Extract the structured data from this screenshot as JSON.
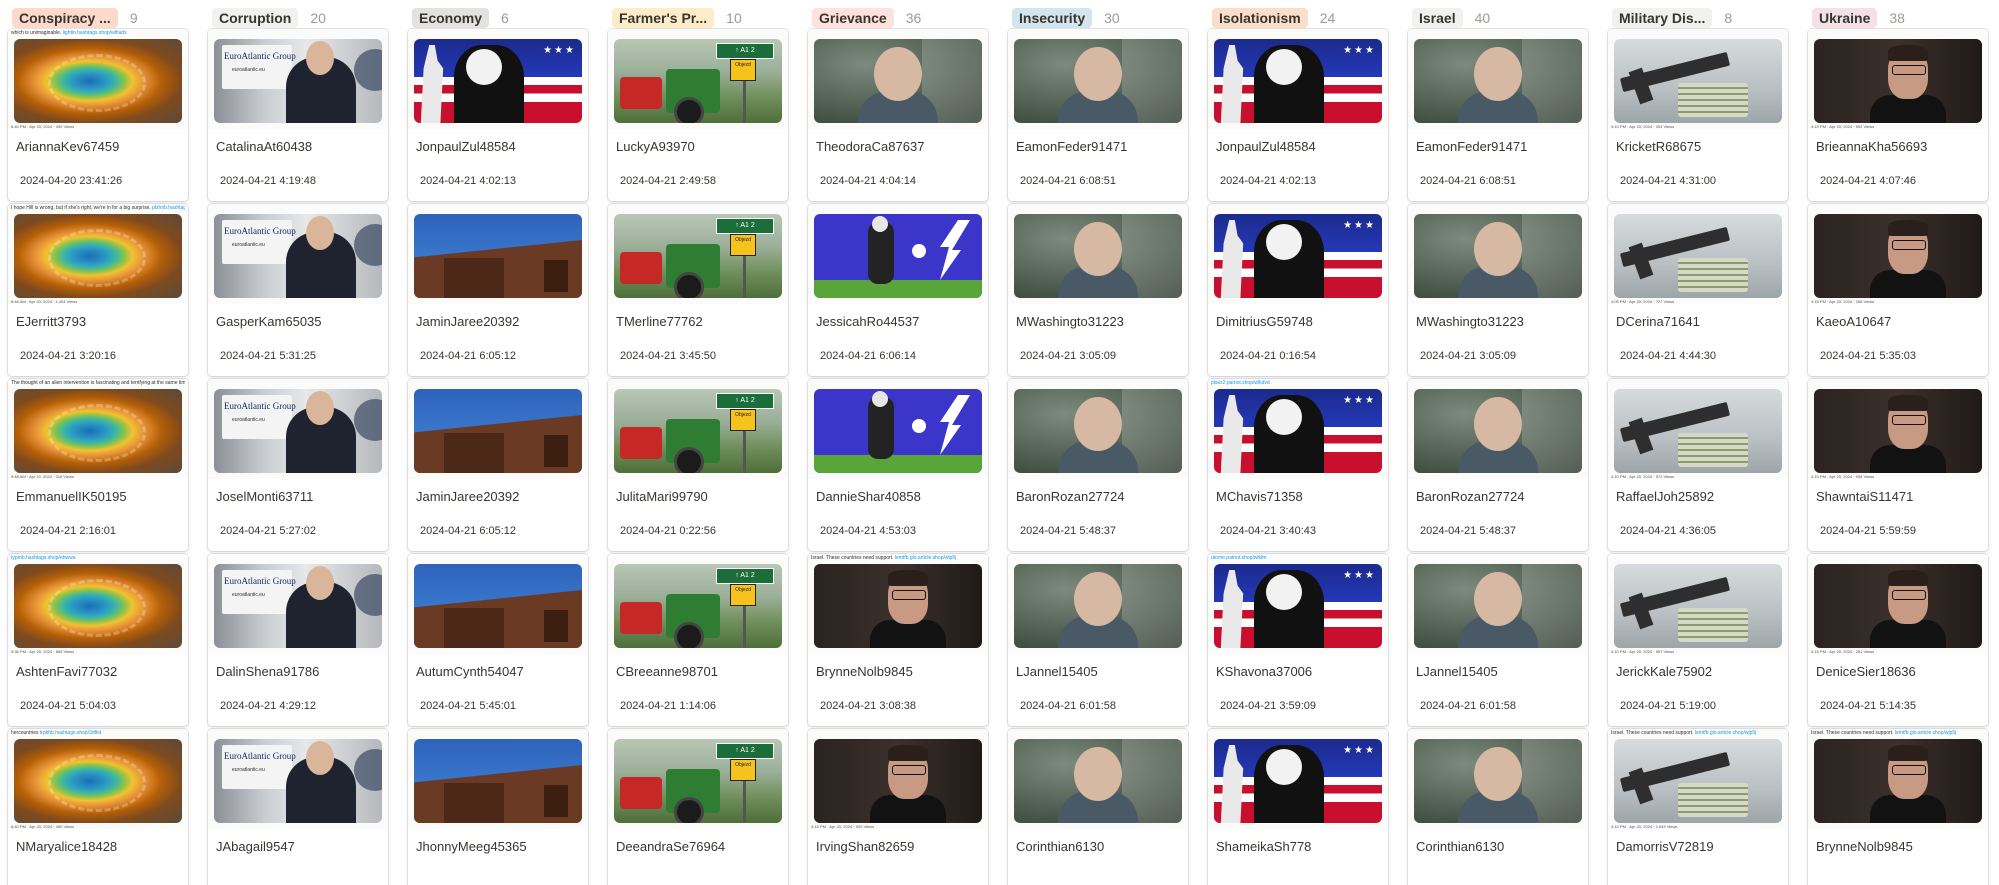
{
  "columns": [
    {
      "label": "Conspiracy ...",
      "count": "9",
      "color": "#fdd9cc",
      "cards": [
        {
          "name": "AriannaKev67459",
          "date": "2024-04-20 23:41:26",
          "image": "img-spring",
          "top": "which is unimaginable.",
          "link": "lightin.hashtags.shop/wlhadx",
          "bottom": "6:40 PM · Apr 20, 2024 · 490 Views"
        },
        {
          "name": "EJerritt3793",
          "date": "2024-04-21 3:20:16",
          "image": "img-spring",
          "top": "I hope Hill is wrong, but if she's right, we're in for a big surprise.",
          "link": "plshnb.hashtags.shop/wlhedd",
          "bottom": "8:46 AM · Apr 20, 2024 · 1,494 Views"
        },
        {
          "name": "EmmanuelIK50195",
          "date": "2024-04-21 2:16:01",
          "image": "img-spring",
          "top": "The thought of an alien intervention is fascinating and terrifying at the same time.",
          "link": "forcy.hashtags.shop/ebf90",
          "bottom": "9:48 AM · Apr 20, 2024 · 316 Views"
        },
        {
          "name": "AshtenFavi77032",
          "date": "2024-04-21 5:04:03",
          "image": "img-spring",
          "top": "",
          "link": "typmb.hashtags.shop/ebwwa",
          "bottom": "5:36 PM · Apr 20, 2024 · 683 Views"
        },
        {
          "name": "NMaryalice18428",
          "date": "",
          "image": "img-spring",
          "top": "hercountries",
          "link": "trpkhb.hashtags.shop/3dfkd",
          "bottom": "6:40 PM · Apr 20, 2024 · 490 Views"
        }
      ]
    },
    {
      "label": "Corruption",
      "count": "20",
      "color": "#f1f1ef",
      "cards": [
        {
          "name": "CatalinaAt60438",
          "date": "2024-04-21 4:19:48",
          "image": "img-office",
          "top": "",
          "link": "",
          "bottom": ""
        },
        {
          "name": "GasperKam65035",
          "date": "2024-04-21 5:31:25",
          "image": "img-office",
          "top": "",
          "link": "",
          "bottom": ""
        },
        {
          "name": "JoselMonti63711",
          "date": "2024-04-21 5:27:02",
          "image": "img-office",
          "top": "",
          "link": "",
          "bottom": ""
        },
        {
          "name": "DalinShena91786",
          "date": "2024-04-21 4:29:12",
          "image": "img-office",
          "top": "",
          "link": "",
          "bottom": ""
        },
        {
          "name": "JAbagail9547",
          "date": "",
          "image": "img-office",
          "top": "",
          "link": "",
          "bottom": ""
        }
      ]
    },
    {
      "label": "Economy",
      "count": "6",
      "color": "#e3e2e0",
      "cards": [
        {
          "name": "JonpaulZul48584",
          "date": "2024-04-21 4:02:13",
          "image": "img-trump",
          "top": "",
          "link": "",
          "bottom": ""
        },
        {
          "name": "JaminJaree20392",
          "date": "2024-04-21 6:05:12",
          "image": "img-building",
          "top": "",
          "link": "",
          "bottom": ""
        },
        {
          "name": "JaminJaree20392",
          "date": "2024-04-21 6:05:12",
          "image": "img-building",
          "top": "",
          "link": "",
          "bottom": ""
        },
        {
          "name": "AutumCynth54047",
          "date": "2024-04-21 5:45:01",
          "image": "img-building",
          "top": "",
          "link": "",
          "bottom": ""
        },
        {
          "name": "JhonnyMeeg45365",
          "date": "",
          "image": "img-building",
          "top": "",
          "link": "",
          "bottom": ""
        }
      ]
    },
    {
      "label": "Farmer's Pr...",
      "count": "10",
      "color": "#fdecc8",
      "cards": [
        {
          "name": "LuckyA93970",
          "date": "2024-04-21 2:49:58",
          "image": "img-tractor",
          "top": "",
          "link": "",
          "bottom": ""
        },
        {
          "name": "TMerline77762",
          "date": "2024-04-21 3:45:50",
          "image": "img-tractor",
          "top": "",
          "link": "",
          "bottom": ""
        },
        {
          "name": "JulitaMari99790",
          "date": "2024-04-21 0:22:56",
          "image": "img-tractor",
          "top": "",
          "link": "",
          "bottom": ""
        },
        {
          "name": "CBreeanne98701",
          "date": "2024-04-21 1:14:06",
          "image": "img-tractor",
          "top": "",
          "link": "",
          "bottom": ""
        },
        {
          "name": "DeeandraSe76964",
          "date": "",
          "image": "img-tractor",
          "top": "",
          "link": "",
          "bottom": ""
        }
      ]
    },
    {
      "label": "Grievance",
      "count": "36",
      "color": "#ffe2dd",
      "cards": [
        {
          "name": "TheodoraCa87637",
          "date": "2024-04-21 4:04:14",
          "image": "img-bald",
          "top": "",
          "link": "",
          "bottom": ""
        },
        {
          "name": "JessicahRo44537",
          "date": "2024-04-21 6:06:14",
          "image": "img-biden",
          "top": "",
          "link": "",
          "bottom": ""
        },
        {
          "name": "DannieShar40858",
          "date": "2024-04-21 4:53:03",
          "image": "img-biden",
          "top": "",
          "link": "",
          "bottom": ""
        },
        {
          "name": "BrynneNolb9845",
          "date": "2024-04-21 3:08:38",
          "image": "img-johnson",
          "top": "Israel. These countries need support.",
          "link": "lemtfb.glo.article.shop/wlp5j",
          "bottom": ""
        },
        {
          "name": "IrvingShan82659",
          "date": "",
          "image": "img-johnson",
          "top": "",
          "link": "",
          "bottom": "4:15 PM · Apr 20, 2024 · 929 Views"
        }
      ]
    },
    {
      "label": "Insecurity",
      "count": "30",
      "color": "#d3e5ef",
      "cards": [
        {
          "name": "EamonFeder91471",
          "date": "2024-04-21 6:08:51",
          "image": "img-bald",
          "top": "",
          "link": "",
          "bottom": ""
        },
        {
          "name": "MWashingto31223",
          "date": "2024-04-21 3:05:09",
          "image": "img-bald",
          "top": "",
          "link": "",
          "bottom": ""
        },
        {
          "name": "BaronRozan27724",
          "date": "2024-04-21 5:48:37",
          "image": "img-bald",
          "top": "",
          "link": "",
          "bottom": ""
        },
        {
          "name": "LJannel15405",
          "date": "2024-04-21 6:01:58",
          "image": "img-bald",
          "top": "",
          "link": "",
          "bottom": ""
        },
        {
          "name": "Corinthian6130",
          "date": "",
          "image": "img-bald",
          "top": "",
          "link": "",
          "bottom": ""
        }
      ]
    },
    {
      "label": "Isolationism",
      "count": "24",
      "color": "#fadec9",
      "cards": [
        {
          "name": "JonpaulZul48584",
          "date": "2024-04-21 4:02:13",
          "image": "img-trump",
          "top": "",
          "link": "",
          "bottom": ""
        },
        {
          "name": "DimitriusG59748",
          "date": "2024-04-21 0:16:54",
          "image": "img-trump",
          "top": "",
          "link": "",
          "bottom": ""
        },
        {
          "name": "MChavis71358",
          "date": "2024-04-21 3:40:43",
          "image": "img-trump",
          "top": "",
          "link": "plsez2.patriot.shop/wlkdvd",
          "bottom": ""
        },
        {
          "name": "KShavona37006",
          "date": "2024-04-21 3:59:09",
          "image": "img-trump",
          "top": "",
          "link": "utome.patriot.shop/wlkfm",
          "bottom": ""
        },
        {
          "name": "ShameikaSh778",
          "date": "",
          "image": "img-trump",
          "top": "",
          "link": "",
          "bottom": ""
        }
      ]
    },
    {
      "label": "Israel",
      "count": "40",
      "color": "#f1f1ef",
      "cards": [
        {
          "name": "EamonFeder91471",
          "date": "2024-04-21 6:08:51",
          "image": "img-bald",
          "top": "",
          "link": "",
          "bottom": ""
        },
        {
          "name": "MWashingto31223",
          "date": "2024-04-21 3:05:09",
          "image": "img-bald",
          "top": "",
          "link": "",
          "bottom": ""
        },
        {
          "name": "BaronRozan27724",
          "date": "2024-04-21 5:48:37",
          "image": "img-bald",
          "top": "",
          "link": "",
          "bottom": ""
        },
        {
          "name": "LJannel15405",
          "date": "2024-04-21 6:01:58",
          "image": "img-bald",
          "top": "",
          "link": "",
          "bottom": ""
        },
        {
          "name": "Corinthian6130",
          "date": "",
          "image": "img-bald",
          "top": "",
          "link": "",
          "bottom": ""
        }
      ]
    },
    {
      "label": "Military Dis...",
      "count": "8",
      "color": "#f1f1ef",
      "cards": [
        {
          "name": "KricketR68675",
          "date": "2024-04-21 4:31:00",
          "image": "img-gun",
          "top": "",
          "link": "",
          "bottom": "4:10 PM · Apr 20, 2024 · 334 Views"
        },
        {
          "name": "DCerina71641",
          "date": "2024-04-21 4:44:30",
          "image": "img-gun",
          "top": "",
          "link": "",
          "bottom": "4:05 PM · Apr 20, 2024 · 727 Views"
        },
        {
          "name": "RaffaelJoh25892",
          "date": "2024-04-21 4:36:05",
          "image": "img-gun",
          "top": "",
          "link": "",
          "bottom": "4:10 PM · Apr 20, 2024 · 572 Views"
        },
        {
          "name": "JerickKale75902",
          "date": "2024-04-21 5:19:00",
          "image": "img-gun",
          "top": "",
          "link": "",
          "bottom": "4:10 PM · Apr 20, 2024 · 957 Views"
        },
        {
          "name": "DamorrisV72819",
          "date": "",
          "image": "img-gun",
          "top": "Israel. These countries need support.",
          "link": "lemtfb.glo.article.shop/wlp5j",
          "bottom": "4:10 PM · Apr 20, 2024 · 1,649 Views"
        }
      ]
    },
    {
      "label": "Ukraine",
      "count": "38",
      "color": "#f5e0e9",
      "cards": [
        {
          "name": "BrieannaKha56693",
          "date": "2024-04-21 4:07:46",
          "image": "img-johnson",
          "top": "",
          "link": "",
          "bottom": "4:15 PM · Apr 20, 2024 · 592 Views"
        },
        {
          "name": "KaeoA10647",
          "date": "2024-04-21 5:35:03",
          "image": "img-johnson",
          "top": "",
          "link": "",
          "bottom": "4:15 PM · Apr 20, 2024 · 268 Views"
        },
        {
          "name": "ShawntaiS11471",
          "date": "2024-04-21 5:59:59",
          "image": "img-johnson",
          "top": "",
          "link": "",
          "bottom": "4:15 PM · Apr 20, 2024 · 938 Views"
        },
        {
          "name": "DeniceSier18636",
          "date": "2024-04-21 5:14:35",
          "image": "img-johnson",
          "top": "",
          "link": "",
          "bottom": "4:15 PM · Apr 20, 2024 · 281 Views"
        },
        {
          "name": "BrynneNolb9845",
          "date": "",
          "image": "img-johnson",
          "top": "Israel. These countries need support.",
          "link": "lemtfb.glo.article.shop/wlp5j",
          "bottom": ""
        }
      ]
    }
  ]
}
